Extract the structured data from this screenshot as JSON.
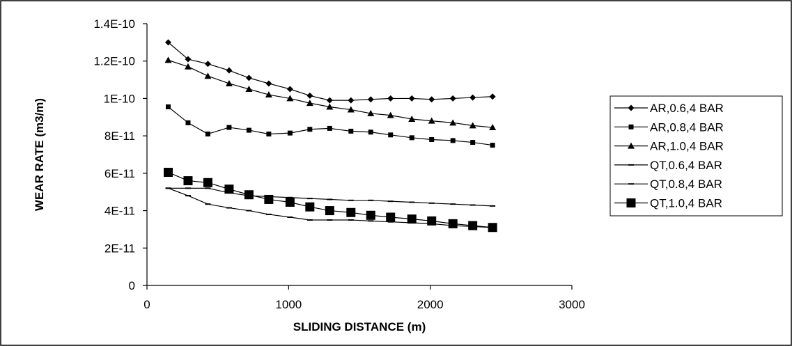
{
  "chart_data": {
    "type": "line",
    "xlabel": "SLIDING DISTANCE (m)",
    "ylabel": "WEAR RATE (m3/m)",
    "xlim": [
      0,
      3000
    ],
    "ylim": [
      0,
      1.4e-10
    ],
    "x_ticks": [
      {
        "value": 0,
        "label": "0"
      },
      {
        "value": 1000,
        "label": "1000"
      },
      {
        "value": 2000,
        "label": "2000"
      },
      {
        "value": 3000,
        "label": "3000"
      }
    ],
    "y_ticks": [
      {
        "value": 0,
        "label": "0"
      },
      {
        "value": 2e-11,
        "label": "2E-11"
      },
      {
        "value": 4e-11,
        "label": "4E-11"
      },
      {
        "value": 6e-11,
        "label": "6E-11"
      },
      {
        "value": 8e-11,
        "label": "8E-11"
      },
      {
        "value": 1e-10,
        "label": "1E-10"
      },
      {
        "value": 1.2e-10,
        "label": "1.2E-10"
      },
      {
        "value": 1.4e-10,
        "label": "1.4E-10"
      }
    ],
    "grid": false,
    "legend_position": "right",
    "x": [
      150,
      290,
      430,
      580,
      720,
      860,
      1010,
      1150,
      1290,
      1440,
      1580,
      1720,
      1870,
      2010,
      2160,
      2300,
      2440
    ],
    "series": [
      {
        "name": "AR,0.6,4 BAR",
        "marker": "diamond",
        "values": [
          1.3e-10,
          1.21e-10,
          1.185e-10,
          1.15e-10,
          1.11e-10,
          1.08e-10,
          1.05e-10,
          1.015e-10,
          9.9e-11,
          9.9e-11,
          9.95e-11,
          1e-10,
          1e-10,
          9.95e-11,
          1e-10,
          1.005e-10,
          1.01e-10
        ]
      },
      {
        "name": "AR,0.8,4 BAR",
        "marker": "square",
        "values": [
          9.55e-11,
          8.7e-11,
          8.1e-11,
          8.45e-11,
          8.3e-11,
          8.1e-11,
          8.15e-11,
          8.35e-11,
          8.4e-11,
          8.25e-11,
          8.2e-11,
          8.05e-11,
          7.9e-11,
          7.8e-11,
          7.75e-11,
          7.65e-11,
          7.5e-11
        ]
      },
      {
        "name": "AR,1.0,4 BAR",
        "marker": "triangle",
        "values": [
          1.205e-10,
          1.17e-10,
          1.12e-10,
          1.08e-10,
          1.05e-10,
          1.02e-10,
          1e-10,
          9.75e-11,
          9.55e-11,
          9.4e-11,
          9.2e-11,
          9.1e-11,
          8.9e-11,
          8.8e-11,
          8.7e-11,
          8.55e-11,
          8.45e-11
        ]
      },
      {
        "name": "QT,0.6,4 BAR",
        "marker": "dash",
        "values": [
          5.2e-11,
          5.2e-11,
          5.2e-11,
          4.95e-11,
          4.8e-11,
          4.75e-11,
          4.7e-11,
          4.65e-11,
          4.6e-11,
          4.55e-11,
          4.55e-11,
          4.5e-11,
          4.45e-11,
          4.4e-11,
          4.35e-11,
          4.3e-11,
          4.25e-11
        ]
      },
      {
        "name": "QT,0.8,4 BAR",
        "marker": "dash",
        "values": [
          5.2e-11,
          4.8e-11,
          4.35e-11,
          4.15e-11,
          4e-11,
          3.8e-11,
          3.65e-11,
          3.5e-11,
          3.5e-11,
          3.5e-11,
          3.45e-11,
          3.4e-11,
          3.35e-11,
          3.3e-11,
          3.2e-11,
          3.15e-11,
          3.1e-11
        ]
      },
      {
        "name": "QT,1.0,4 BAR",
        "marker": "big-square",
        "values": [
          6.05e-11,
          5.6e-11,
          5.5e-11,
          5.15e-11,
          4.85e-11,
          4.6e-11,
          4.45e-11,
          4.2e-11,
          4e-11,
          3.9e-11,
          3.75e-11,
          3.65e-11,
          3.55e-11,
          3.45e-11,
          3.3e-11,
          3.2e-11,
          3.1e-11
        ]
      }
    ]
  }
}
